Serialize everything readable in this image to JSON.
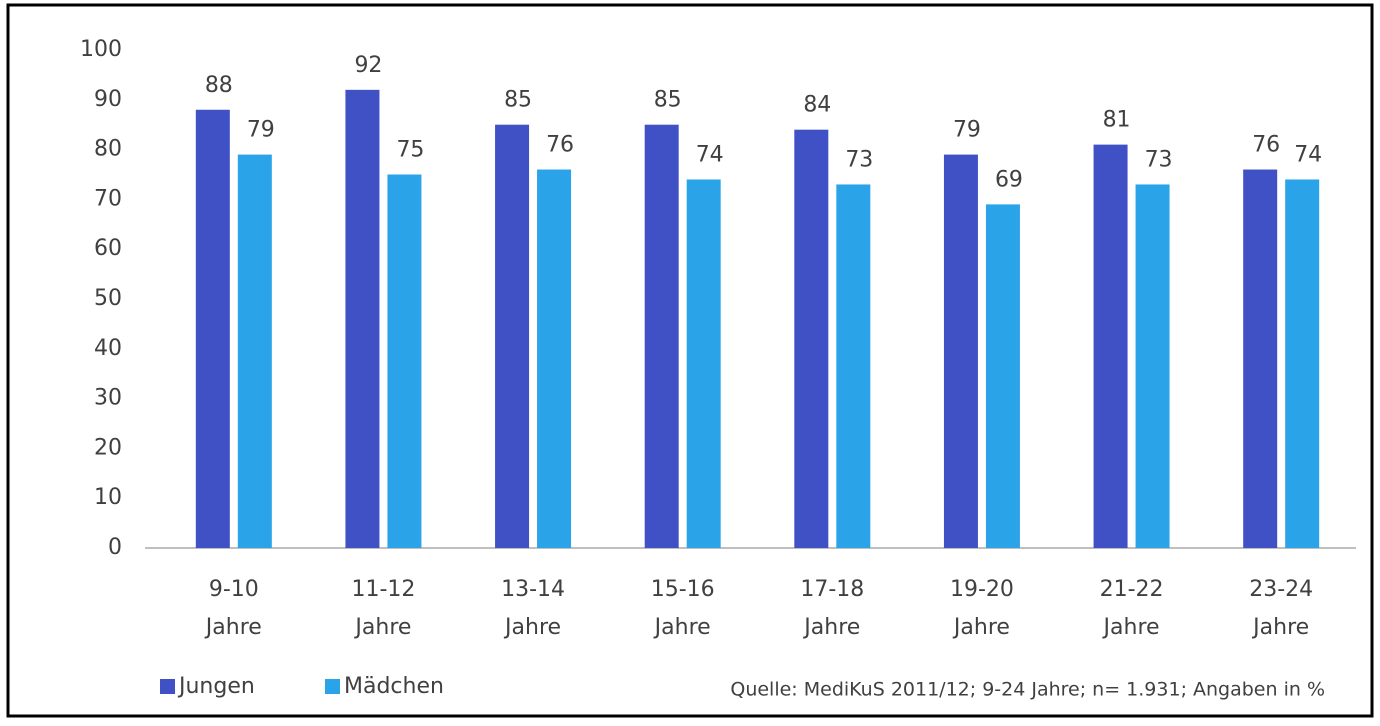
{
  "chart_data": {
    "type": "bar",
    "categories": [
      "9-10 Jahre",
      "11-12 Jahre",
      "13-14 Jahre",
      "15-16 Jahre",
      "17-18 Jahre",
      "19-20 Jahre",
      "21-22 Jahre",
      "23-24 Jahre"
    ],
    "series": [
      {
        "name": "Jungen",
        "color": "#3f51c4",
        "values": [
          88,
          92,
          85,
          85,
          84,
          79,
          81,
          76
        ]
      },
      {
        "name": "Mädchen",
        "color": "#2ba3e8",
        "values": [
          79,
          75,
          76,
          74,
          73,
          69,
          73,
          74
        ]
      }
    ],
    "ylim": [
      0,
      100
    ],
    "yticks": [
      0,
      10,
      20,
      30,
      40,
      50,
      60,
      70,
      80,
      90,
      100
    ],
    "source": "Quelle: MediKuS 2011/12; 9-24 Jahre; n= 1.931; Angaben in %"
  }
}
